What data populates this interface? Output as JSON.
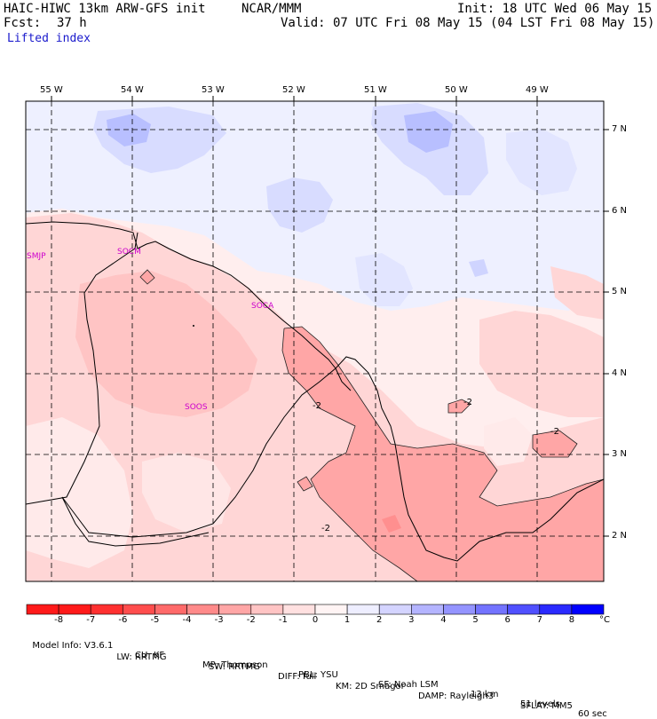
{
  "header": {
    "model": "HAIC-HIWC 13km ARW-GFS init",
    "org": "NCAR/MMM",
    "init": "Init: 18 UTC Wed 06 May 15",
    "fcst_label": "Fcst:",
    "fcst_value": "37 h",
    "valid": "Valid: 07 UTC Fri 08 May 15 (04 LST Fri 08 May 15)",
    "field": "Lifted index"
  },
  "axes": {
    "lon_labels": [
      "55 W",
      "54 W",
      "53 W",
      "52 W",
      "51 W",
      "50 W",
      "49 W"
    ],
    "lat_labels": [
      "7 N",
      "6 N",
      "5 N",
      "4 N",
      "3 N",
      "2 N"
    ]
  },
  "stations": [
    "SMJP",
    "SOCM",
    "SOCA",
    "SOOS"
  ],
  "contour_labels": [
    "-2",
    "-2",
    "-2",
    "-2",
    "-2"
  ],
  "colorbar": {
    "ticks": [
      "-8",
      "-7",
      "-6",
      "-5",
      "-4",
      "-3",
      "-2",
      "-1",
      "0",
      "1",
      "2",
      "3",
      "4",
      "5",
      "6",
      "7",
      "8"
    ],
    "unit": "°C",
    "colors": [
      "#ff1a1a",
      "#ff3030",
      "#ff4d4d",
      "#ff6a6a",
      "#ff8a8a",
      "#ffa6a6",
      "#ffc4c4",
      "#ffe0e0",
      "#fff4f4",
      "#eeeeff",
      "#d4d4ff",
      "#b4b4ff",
      "#9494ff",
      "#7373ff",
      "#5050ff",
      "#2a2aff",
      "#0000ff"
    ]
  },
  "footer": {
    "line1": [
      "Model Info: V3.6.1",
      "CU: KF",
      "MP: Thompson",
      "PBL: YSU",
      "SF: Noah LSM",
      "13 km",
      "51 levels",
      "60 sec"
    ],
    "line2": [
      "LW: RRTMG",
      "SW: RRTMG",
      "DIFF: full",
      "KM: 2D Smagor",
      "DAMP: Rayleigh3",
      "SFLAY: MM5"
    ]
  }
}
